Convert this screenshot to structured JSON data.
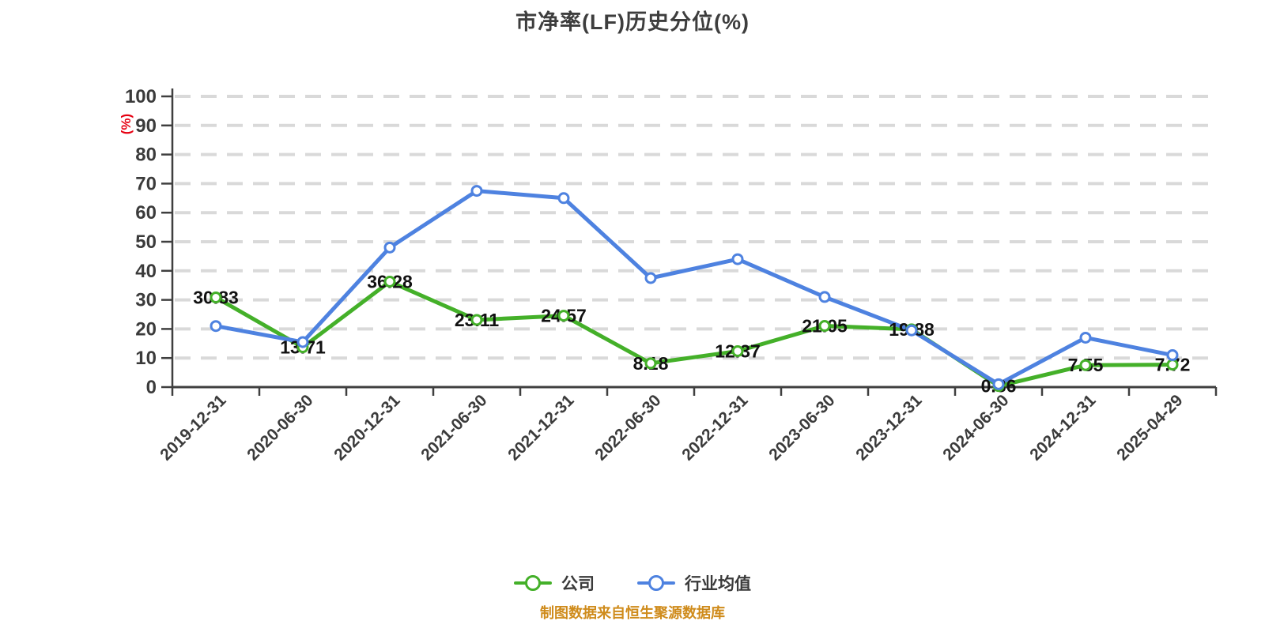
{
  "title": {
    "text": "市净率(LF)历史分位(%)"
  },
  "y_axis": {
    "unit_label": "(%)",
    "min": 0,
    "max": 100,
    "tick_step": 10
  },
  "footer": {
    "text": "制图数据来自恒生聚源数据库"
  },
  "legend": {
    "items": [
      {
        "label": "公司",
        "color": "#44b029"
      },
      {
        "label": "行业均值",
        "color": "#4e82e0"
      }
    ]
  },
  "chart_data": {
    "type": "line",
    "title": "市净率(LF)历史分位(%)",
    "ylabel": "(%)",
    "ylim": [
      0,
      100
    ],
    "ytick_step": 10,
    "grid": "horizontal-dashed",
    "legend_position": "bottom",
    "categories": [
      "2019-12-31",
      "2020-06-30",
      "2020-12-31",
      "2021-06-30",
      "2021-12-31",
      "2022-06-30",
      "2022-12-31",
      "2023-06-30",
      "2023-12-31",
      "2024-06-30",
      "2024-12-31",
      "2025-04-29"
    ],
    "series": [
      {
        "name": "公司",
        "color": "#44b029",
        "show_point_labels": true,
        "values": [
          30.83,
          13.71,
          36.28,
          23.11,
          24.57,
          8.18,
          12.37,
          21.05,
          19.88,
          0.36,
          7.55,
          7.72
        ]
      },
      {
        "name": "行业均值",
        "color": "#4e82e0",
        "show_point_labels": false,
        "values": [
          21,
          15.5,
          48,
          67.5,
          65,
          37.5,
          44,
          31,
          19.5,
          1,
          17,
          11
        ]
      }
    ]
  },
  "colors": {
    "grid": "#d9d9d9",
    "axis": "#3f3f3f",
    "tick_label": "#3b3b3b",
    "point_label": "#111111",
    "title": "#3d3d3d",
    "footer": "#cf8b1b",
    "y_unit": "#e60012",
    "marker_fill": "#ffffff"
  }
}
